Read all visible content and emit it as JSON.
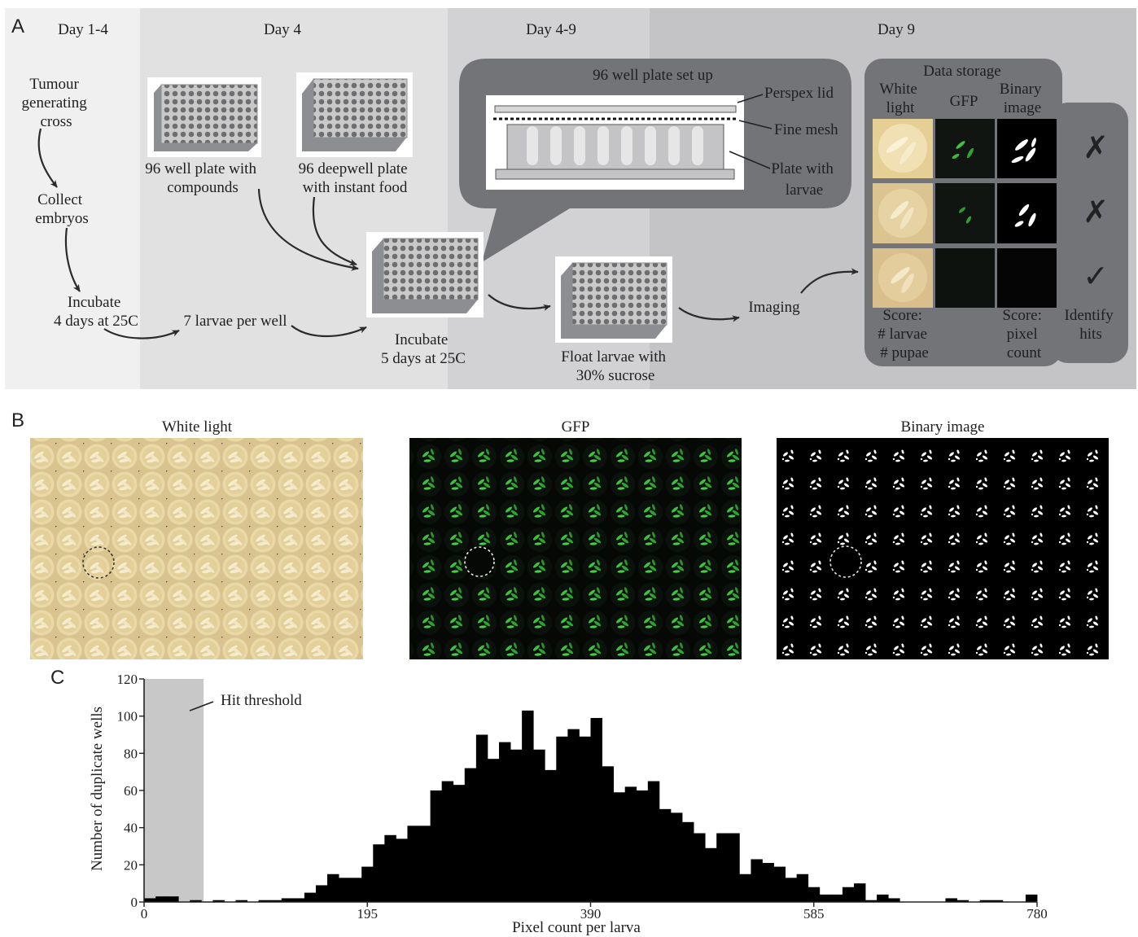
{
  "panels": {
    "a": "A",
    "b": "B",
    "c": "C"
  },
  "stages": [
    "Day 1-4",
    "Day 4",
    "Day 4-9",
    "Day 9"
  ],
  "workflow": {
    "cross": [
      "Tumour",
      "generating",
      "cross"
    ],
    "collect": [
      "Collect",
      "embryos"
    ],
    "incubate1": [
      "Incubate",
      "4 days at 25C"
    ],
    "larvae_per_well": "7 larvae per well",
    "compounds": [
      "96 well plate with",
      "compounds"
    ],
    "food": [
      "96 deepwell plate",
      "with instant food"
    ],
    "incubate2": [
      "Incubate",
      "5 days at 25C"
    ],
    "float": [
      "Float larvae with",
      "30% sucrose"
    ],
    "imaging": "Imaging"
  },
  "setup": {
    "title": "96 well plate set up",
    "parts": [
      "Perspex lid",
      "Fine mesh"
    ],
    "plate": [
      "Plate with",
      "larvae"
    ]
  },
  "storage": {
    "title": "Data storage",
    "col_white": [
      "White",
      "light"
    ],
    "col_gfp": "GFP",
    "col_binary": [
      "Binary",
      "image"
    ],
    "score1": [
      "Score:",
      "# larvae",
      "# pupae"
    ],
    "score2": [
      "Score:",
      "pixel",
      "count"
    ],
    "identify": [
      "Identify",
      "hits"
    ],
    "marks": [
      "✗",
      "✗",
      "✓"
    ]
  },
  "images": {
    "white": "White light",
    "gfp": "GFP",
    "binary": "Binary image"
  },
  "colors": {
    "stage1": "#f0f0f0",
    "stage2": "#e1e1e2",
    "stage3": "#d2d2d4",
    "stage4": "#c4c4c6",
    "bubble": "#737478",
    "gfp": "#3fc23f",
    "threshold": "#c8c8c8"
  },
  "chart_data": {
    "type": "bar",
    "xlabel": "Pixel count per larva",
    "ylabel": "Number of duplicate wells",
    "annotation": "Hit threshold",
    "threshold_max": 52,
    "xlim": [
      0,
      780
    ],
    "ylim": [
      0,
      120
    ],
    "xticks": [
      0,
      195,
      390,
      585,
      780
    ],
    "yticks": [
      0,
      20,
      40,
      60,
      80,
      100,
      120
    ],
    "bin_width": 10,
    "x": [
      5,
      15,
      25,
      35,
      45,
      55,
      65,
      75,
      85,
      95,
      105,
      115,
      125,
      135,
      145,
      155,
      165,
      175,
      185,
      195,
      205,
      215,
      225,
      235,
      245,
      255,
      265,
      275,
      285,
      295,
      305,
      315,
      325,
      335,
      345,
      355,
      365,
      375,
      385,
      395,
      405,
      415,
      425,
      435,
      445,
      455,
      465,
      475,
      485,
      495,
      505,
      515,
      525,
      535,
      545,
      555,
      565,
      575,
      585,
      595,
      605,
      615,
      625,
      635,
      645,
      655,
      665,
      675,
      685,
      695,
      705,
      715,
      725,
      735,
      745,
      755,
      765,
      775
    ],
    "values": [
      2,
      3,
      3,
      0,
      1,
      0,
      1,
      0,
      1,
      0,
      1,
      1,
      2,
      2,
      5,
      9,
      15,
      13,
      13,
      19,
      31,
      36,
      34,
      41,
      41,
      60,
      65,
      63,
      72,
      90,
      77,
      86,
      82,
      103,
      82,
      71,
      89,
      93,
      89,
      99,
      73,
      59,
      62,
      60,
      65,
      50,
      48,
      43,
      37,
      29,
      37,
      37,
      15,
      23,
      21,
      19,
      13,
      15,
      8,
      4,
      4,
      8,
      10,
      1,
      4,
      2,
      0,
      0,
      0,
      0,
      2,
      1,
      0,
      1,
      1,
      0,
      0,
      4
    ]
  }
}
